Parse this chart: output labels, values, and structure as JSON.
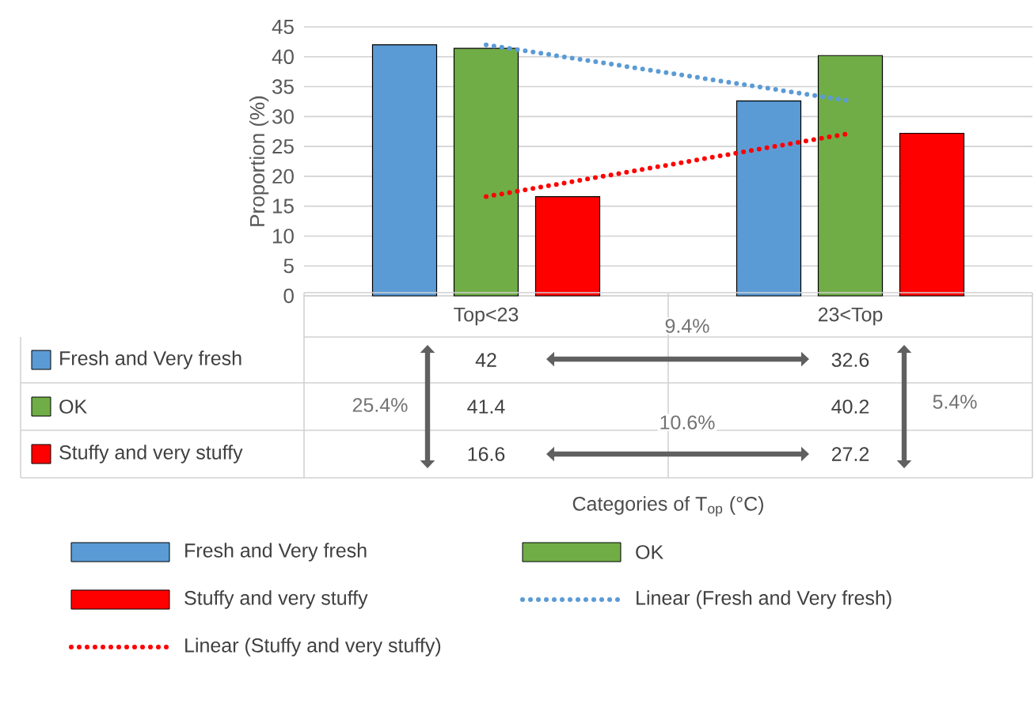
{
  "chart_data": {
    "type": "bar",
    "ylabel": "Proportion (%)",
    "categories": [
      "Top<23",
      "23<Top"
    ],
    "series": [
      {
        "name": "Fresh and Very fresh",
        "color": "#5b9bd5",
        "values": [
          42,
          32.6
        ],
        "value_labels": [
          "42",
          "32.6"
        ]
      },
      {
        "name": "OK",
        "color": "#70ad47",
        "values": [
          41.4,
          40.2
        ],
        "value_labels": [
          "41.4",
          "40.2"
        ]
      },
      {
        "name": "Stuffy and very stuffy",
        "color": "#ff0000",
        "values": [
          16.6,
          27.2
        ],
        "value_labels": [
          "16.6",
          "27.2"
        ]
      },
      {
        "name": "Linear (Fresh and Very fresh)",
        "type": "line",
        "line_style": "dotted",
        "color": "#5b9bd5",
        "values": [
          42,
          32.6
        ]
      },
      {
        "name": "Linear (Stuffy and very stuffy)",
        "type": "line",
        "line_style": "dotted",
        "color": "#ff0000",
        "values": [
          16.6,
          27.2
        ]
      }
    ],
    "ylim": [
      0,
      45
    ],
    "yticks": [
      0,
      5,
      10,
      15,
      20,
      25,
      30,
      35,
      40,
      45
    ],
    "grid": "y",
    "legend": "bottom",
    "annotations": [
      "9.4%",
      "25.4%",
      "10.6%",
      "5.4%",
      "Categories of T$_{op}$ (°C)"
    ]
  }
}
